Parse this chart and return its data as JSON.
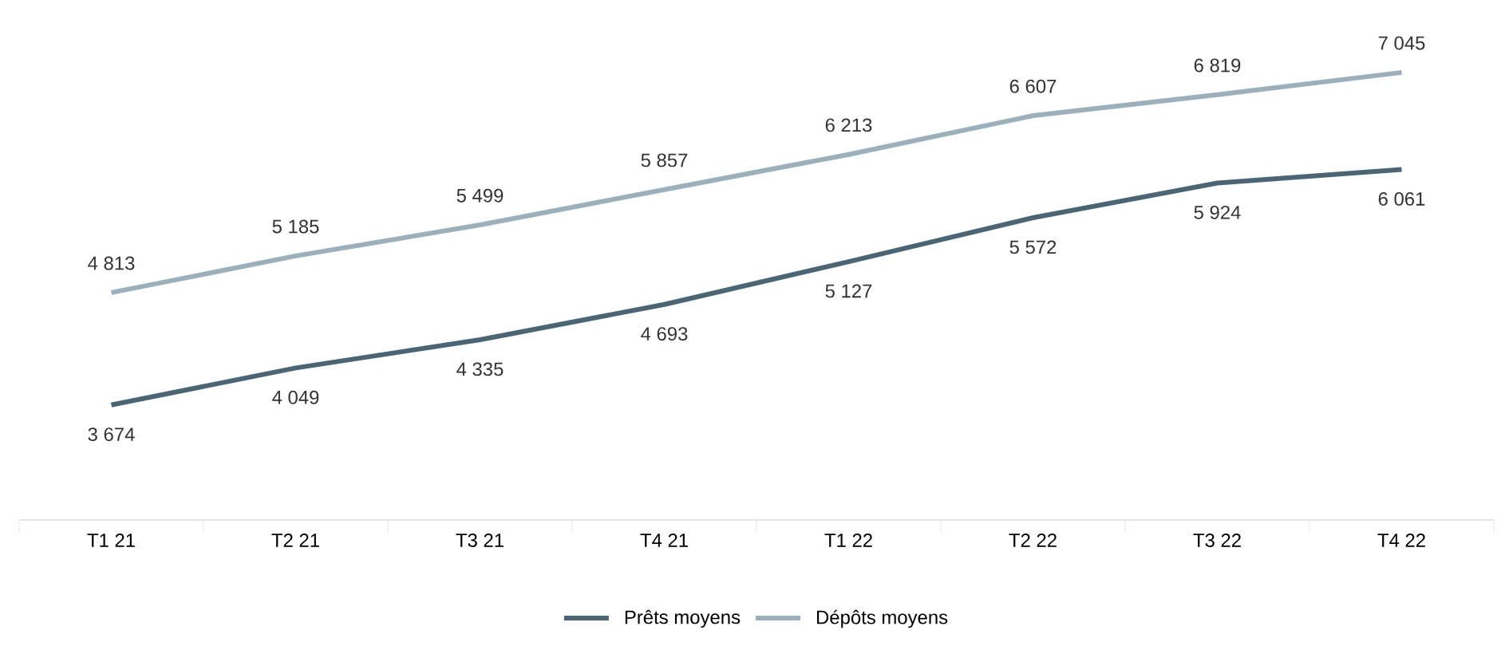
{
  "chart_data": {
    "type": "line",
    "categories": [
      "T1 21",
      "T2 21",
      "T3 21",
      "T4 21",
      "T1 22",
      "T2 22",
      "T3 22",
      "T4 22"
    ],
    "series": [
      {
        "name": "Prêts moyens",
        "color": "#4b6574",
        "values": [
          3674,
          4049,
          4335,
          4693,
          5127,
          5572,
          5924,
          6061
        ],
        "value_labels": [
          "3 674",
          "4 049",
          "4 335",
          "4 693",
          "5 127",
          "5 572",
          "5 924",
          "6 061"
        ]
      },
      {
        "name": "Dépôts moyens",
        "color": "#9cb0bc",
        "values": [
          4813,
          5185,
          5499,
          5857,
          6213,
          6607,
          6819,
          7045
        ],
        "value_labels": [
          "4 813",
          "5 185",
          "5 499",
          "5 857",
          "6 213",
          "6 607",
          "6 819",
          "7 045"
        ]
      }
    ],
    "legend": "bottom",
    "grid": false,
    "marker": "none",
    "line_style": "solid"
  }
}
